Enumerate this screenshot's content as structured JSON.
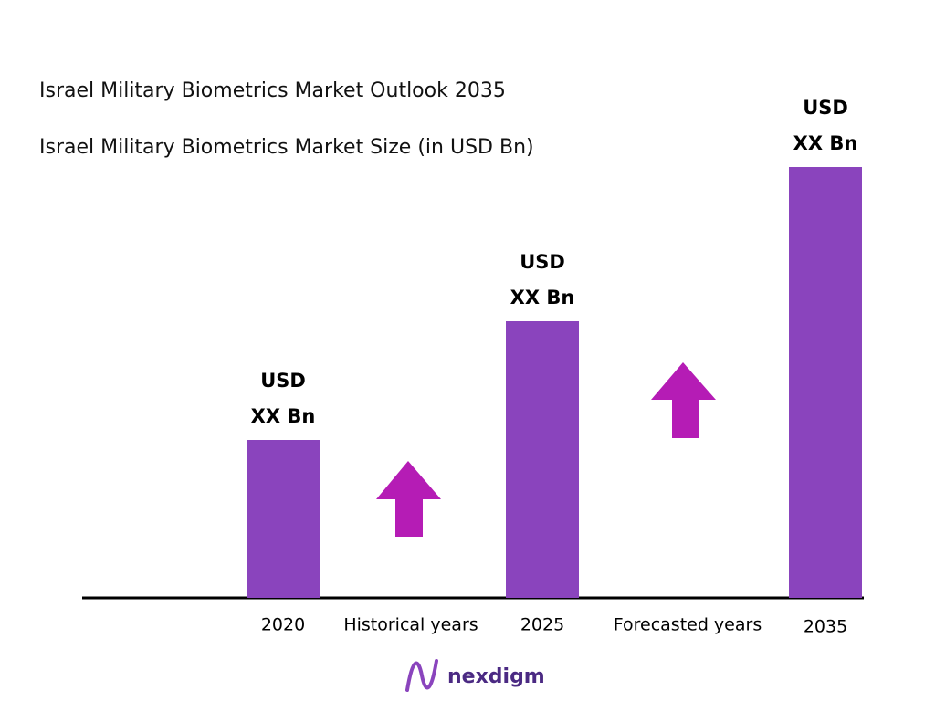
{
  "chart_data": {
    "type": "bar",
    "title": "Israel Military Biometrics Market Outlook 2035",
    "subtitle": "Israel Military Biometrics Market Size (in USD Bn)",
    "categories": [
      "2020",
      "2025",
      "2035"
    ],
    "values": [
      173,
      303,
      472
    ],
    "value_labels": [
      [
        "USD",
        "XX Bn"
      ],
      [
        "USD",
        "XX Bn"
      ],
      [
        "USD",
        "XX Bn"
      ]
    ],
    "color": "#8a44bd",
    "ylim": [
      0,
      472
    ],
    "annotations": [
      "Historical years",
      "Forecasted years"
    ]
  },
  "brand": "nexdigm"
}
